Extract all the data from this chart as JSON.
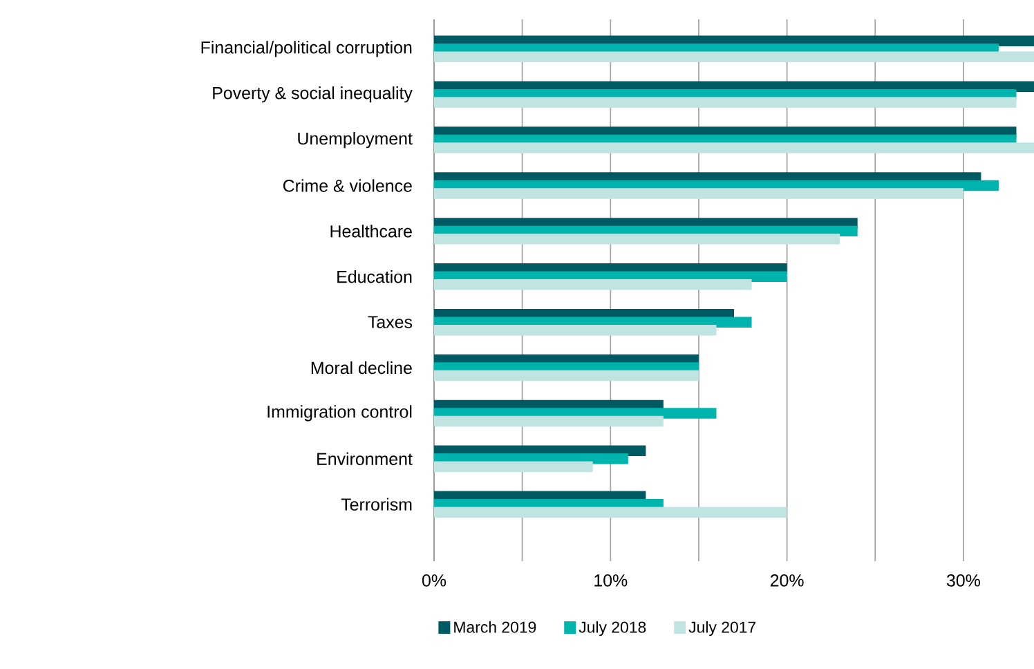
{
  "chart_data": {
    "type": "bar",
    "orientation": "horizontal",
    "categories": [
      "Financial/political corruption",
      "Poverty & social inequality",
      "Unemployment",
      "Crime & violence",
      "Healthcare",
      "Education",
      "Taxes",
      "Moral decline",
      "Immigration control",
      "Environment",
      "Terrorism"
    ],
    "series": [
      {
        "name": "March 2019",
        "color": "#005a64",
        "values": [
          34,
          34,
          33,
          31,
          24,
          20,
          17,
          15,
          13,
          12,
          12
        ]
      },
      {
        "name": "July 2018",
        "color": "#00b4ae",
        "values": [
          32,
          33,
          33,
          32,
          24,
          20,
          18,
          15,
          16,
          11,
          13
        ]
      },
      {
        "name": "July 2017",
        "color": "#c0e4e2",
        "values": [
          34,
          33,
          34,
          30,
          23,
          18,
          16,
          15,
          13,
          9,
          20
        ]
      }
    ],
    "xlim": [
      0,
      34
    ],
    "xticks": [
      {
        "value": 0,
        "label": "0%"
      },
      {
        "value": 5,
        "label": null
      },
      {
        "value": 10,
        "label": "10%"
      },
      {
        "value": 15,
        "label": null
      },
      {
        "value": 20,
        "label": "20%"
      },
      {
        "value": 25,
        "label": null
      },
      {
        "value": 30,
        "label": "30%"
      }
    ],
    "grid": "x",
    "legend": "bottom"
  }
}
